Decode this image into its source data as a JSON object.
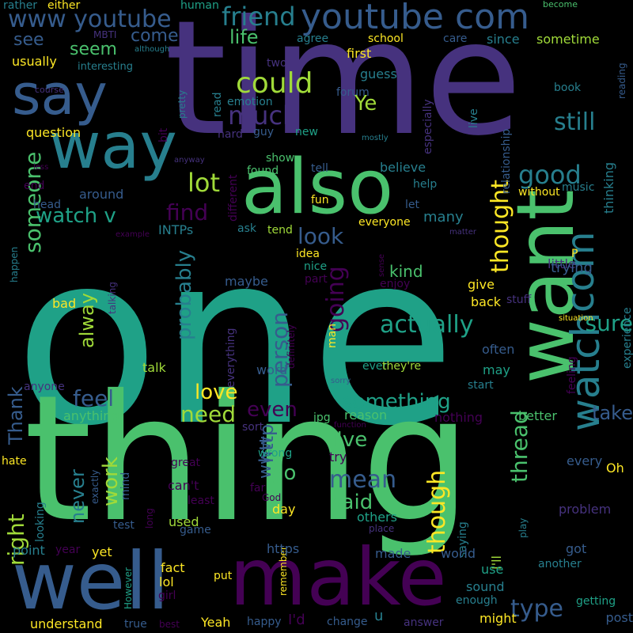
{
  "background": "#000000",
  "palette": {
    "p1": "#440154",
    "p2": "#46327e",
    "p3": "#365c8d",
    "p4": "#277f8e",
    "p5": "#1fa187",
    "p6": "#4ac16d",
    "p7": "#a0da39",
    "p8": "#fde725"
  },
  "words": [
    "time",
    "one",
    "thing",
    "want",
    "also",
    "way",
    "make",
    "well",
    "say",
    "youtube com",
    "www youtube",
    "watch",
    "com",
    "watch v",
    "friend",
    "life",
    "could",
    "much",
    "lot",
    "find",
    "going",
    "thought",
    "actually",
    "good",
    "still",
    "someone",
    "probably",
    "sure",
    "feel",
    "love",
    "need",
    "even",
    "something",
    "person",
    "http",
    "www",
    "take",
    "type",
    "look",
    "mean",
    "said",
    "though",
    "thread",
    "I've",
    "work",
    "never",
    "right",
    "go",
    "make sure",
    "Thank",
    "alway",
    "see",
    "come",
    "seem",
    "usually",
    "interesting",
    "question",
    "MBTI",
    "either",
    "human",
    "become",
    "agree",
    "school",
    "care",
    "since",
    "sometime",
    "first",
    "guess",
    "forum",
    "book",
    "reading",
    "relationship",
    "thinking",
    "emotion",
    "read",
    "Ye",
    "pretty",
    "bit",
    "hard",
    "guy",
    "new",
    "mostly",
    "live",
    "especially",
    "around",
    "without",
    "music",
    "believe",
    "tell",
    "help",
    "let",
    "many",
    "everyone",
    "tend",
    "fun",
    "show",
    "found",
    "anyway",
    "different",
    "ask",
    "INTPs",
    "head",
    "end",
    "less",
    "example",
    "matter",
    "idea",
    "nice",
    "part",
    "kind",
    "enjoy",
    "little",
    "P",
    "trying",
    "maybe",
    "talking",
    "bad",
    "happen",
    "sense",
    "stuff",
    "give",
    "back",
    "situation",
    "experience",
    "often",
    "feeling",
    "may",
    "ever",
    "start",
    "sorry",
    "talk",
    "everything",
    "definitely",
    "word",
    "man",
    "they're",
    "anyone",
    "remember",
    "anything",
    "reason",
    "nothing",
    "better",
    "jpg",
    "function",
    "sort",
    "try",
    "I'll",
    "every",
    "Oh",
    "hate",
    "great",
    "can't",
    "wrong",
    "exactly",
    "mind",
    "least",
    "far",
    "long",
    "test",
    "used",
    "God",
    "others",
    "day",
    "problem",
    "game",
    "place",
    "looking",
    "saying",
    "play",
    "point",
    "year",
    "yet",
    "https",
    "made",
    "world",
    "got",
    "fact",
    "However",
    "lol",
    "girl",
    "put",
    "use",
    "another",
    "sound",
    "getting",
    "Yeah",
    "happy",
    "I'd",
    "understand",
    "true",
    "best",
    "change",
    "answer",
    "enough",
    "might",
    "post",
    "u",
    "rather",
    "although",
    "course",
    "two",
    "anyway",
    "pretty"
  ]
}
